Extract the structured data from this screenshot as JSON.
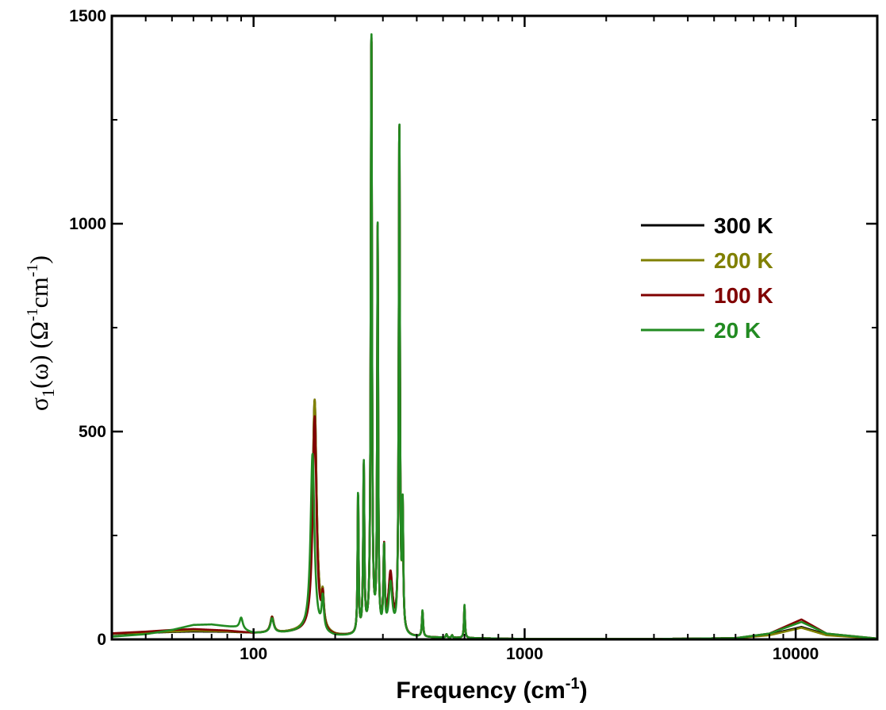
{
  "chart_data": {
    "type": "line",
    "title": "",
    "xlabel": "Frequency (cm",
    "xlabel_sup": "-1",
    "xlabel_end": ")",
    "ylabel_parts": {
      "sigma": "σ",
      "sub": "1",
      "omega": "(ω)  (Ω",
      "sup1": "-1",
      "cm": "cm",
      "sup2": "-1",
      "close": ")"
    },
    "x_scale": "log",
    "xlim": [
      30,
      20000
    ],
    "ylim": [
      0,
      1500
    ],
    "x_ticks": [
      100,
      1000,
      10000
    ],
    "x_tick_labels": [
      "100",
      "1000",
      "10000"
    ],
    "y_ticks": [
      0,
      500,
      1000,
      1500
    ],
    "y_tick_labels": [
      "0",
      "500",
      "1000",
      "1500"
    ],
    "y_minor_ticks": [
      250,
      750,
      1250
    ],
    "grid": false,
    "legend_position": "right",
    "series": [
      {
        "name": "300 K",
        "color": "#000000",
        "background": [
          [
            30,
            12
          ],
          [
            40,
            15
          ],
          [
            50,
            17
          ],
          [
            60,
            18
          ],
          [
            80,
            17
          ],
          [
            100,
            14
          ],
          [
            130,
            14
          ],
          [
            160,
            16
          ],
          [
            200,
            6
          ],
          [
            300,
            6
          ],
          [
            500,
            4
          ],
          [
            1000,
            1
          ],
          [
            3000,
            1
          ],
          [
            6000,
            3
          ],
          [
            8000,
            12
          ],
          [
            10500,
            30
          ],
          [
            13000,
            12
          ],
          [
            20000,
            2
          ]
        ],
        "peaks": [
          [
            117,
            35,
            2
          ],
          [
            168,
            560,
            3.5
          ],
          [
            180,
            70,
            2
          ],
          [
            243,
            340,
            1.2
          ],
          [
            255,
            400,
            1.5
          ],
          [
            272,
            1470,
            1.6
          ],
          [
            287,
            960,
            1.4
          ],
          [
            303,
            190,
            2
          ],
          [
            320,
            130,
            8
          ],
          [
            345,
            1240,
            2
          ],
          [
            355,
            280,
            2
          ],
          [
            420,
            60,
            2.5
          ],
          [
            515,
            8,
            3
          ],
          [
            540,
            6,
            3
          ],
          [
            600,
            75,
            3
          ]
        ]
      },
      {
        "name": "200 K",
        "color": "#808000",
        "background": [
          [
            30,
            13
          ],
          [
            40,
            16
          ],
          [
            50,
            18
          ],
          [
            60,
            20
          ],
          [
            80,
            18
          ],
          [
            100,
            14
          ],
          [
            130,
            14
          ],
          [
            160,
            16
          ],
          [
            200,
            6
          ],
          [
            300,
            6
          ],
          [
            500,
            4
          ],
          [
            1000,
            1
          ],
          [
            3000,
            1
          ],
          [
            6000,
            3
          ],
          [
            8000,
            10
          ],
          [
            10500,
            28
          ],
          [
            13000,
            10
          ],
          [
            20000,
            2
          ]
        ],
        "peaks": [
          [
            117,
            38,
            2
          ],
          [
            168,
            560,
            3.5
          ],
          [
            180,
            70,
            2
          ],
          [
            243,
            340,
            1.2
          ],
          [
            255,
            400,
            1.5
          ],
          [
            272,
            1470,
            1.6
          ],
          [
            287,
            960,
            1.4
          ],
          [
            303,
            190,
            2
          ],
          [
            320,
            140,
            7
          ],
          [
            345,
            1240,
            2
          ],
          [
            355,
            280,
            2
          ],
          [
            420,
            60,
            2.5
          ],
          [
            515,
            8,
            3
          ],
          [
            540,
            6,
            3
          ],
          [
            600,
            75,
            3
          ]
        ]
      },
      {
        "name": "100 K",
        "color": "#800000",
        "background": [
          [
            30,
            14
          ],
          [
            40,
            18
          ],
          [
            50,
            22
          ],
          [
            60,
            24
          ],
          [
            80,
            20
          ],
          [
            100,
            14
          ],
          [
            130,
            14
          ],
          [
            160,
            16
          ],
          [
            200,
            6
          ],
          [
            300,
            6
          ],
          [
            500,
            4
          ],
          [
            1000,
            1
          ],
          [
            3000,
            1
          ],
          [
            6000,
            3
          ],
          [
            8000,
            14
          ],
          [
            10500,
            48
          ],
          [
            13000,
            14
          ],
          [
            20000,
            2
          ]
        ],
        "peaks": [
          [
            117,
            38,
            2
          ],
          [
            168,
            520,
            3.2
          ],
          [
            180,
            75,
            2
          ],
          [
            243,
            345,
            1.2
          ],
          [
            255,
            405,
            1.5
          ],
          [
            272,
            1480,
            1.6
          ],
          [
            287,
            965,
            1.4
          ],
          [
            303,
            195,
            2
          ],
          [
            320,
            145,
            7
          ],
          [
            345,
            1245,
            2
          ],
          [
            355,
            285,
            2
          ],
          [
            420,
            62,
            2.5
          ],
          [
            515,
            8,
            3
          ],
          [
            540,
            6,
            3
          ],
          [
            600,
            78,
            3
          ]
        ]
      },
      {
        "name": "20 K",
        "color": "#228B22",
        "background": [
          [
            30,
            6
          ],
          [
            40,
            12
          ],
          [
            50,
            22
          ],
          [
            60,
            34
          ],
          [
            70,
            35
          ],
          [
            85,
            28
          ],
          [
            100,
            14
          ],
          [
            130,
            14
          ],
          [
            160,
            16
          ],
          [
            200,
            6
          ],
          [
            300,
            6
          ],
          [
            500,
            4
          ],
          [
            1000,
            1
          ],
          [
            3000,
            1
          ],
          [
            6000,
            3
          ],
          [
            8000,
            14
          ],
          [
            10500,
            42
          ],
          [
            13000,
            14
          ],
          [
            20000,
            2
          ]
        ],
        "peaks": [
          [
            90,
            28,
            1.5
          ],
          [
            117,
            35,
            2
          ],
          [
            165,
            430,
            3.2
          ],
          [
            180,
            80,
            2
          ],
          [
            243,
            350,
            1.2
          ],
          [
            255,
            410,
            1.5
          ],
          [
            272,
            1490,
            1.6
          ],
          [
            287,
            970,
            1.4
          ],
          [
            303,
            200,
            2
          ],
          [
            320,
            120,
            6
          ],
          [
            345,
            1250,
            2
          ],
          [
            355,
            290,
            2
          ],
          [
            420,
            64,
            2.5
          ],
          [
            515,
            8,
            3
          ],
          [
            540,
            6,
            3
          ],
          [
            600,
            80,
            3
          ]
        ]
      }
    ]
  }
}
